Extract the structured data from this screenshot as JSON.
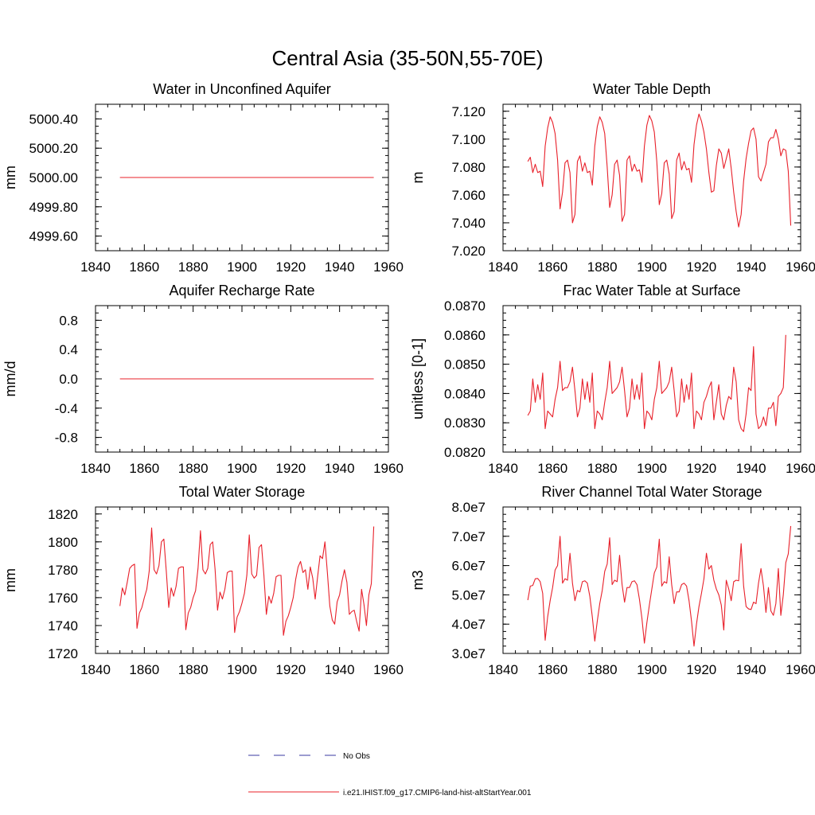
{
  "figure": {
    "title": "Central Asia (35-50N,55-70E)",
    "legend": [
      {
        "label": "No Obs",
        "color": "#3a3aa0",
        "dash": "dashed"
      },
      {
        "label": "i.e21.IHIST.f09_g17.CMIP6-land-hist-altStartYear.001",
        "color": "#e8202a",
        "dash": "solid"
      }
    ]
  },
  "chart_data": [
    {
      "type": "line",
      "title": "Water in Unconfined Aquifer",
      "xlabel": "",
      "ylabel": "mm",
      "xlim": [
        1840,
        1960
      ],
      "ylim": [
        4999.5,
        5000.5
      ],
      "xticks": [
        1840,
        1860,
        1880,
        1900,
        1920,
        1940,
        1960
      ],
      "yticks": [
        4999.6,
        4999.8,
        5000.0,
        5000.2,
        5000.4
      ],
      "ytick_labels": [
        "4999.60",
        "4999.80",
        "5000.00",
        "5000.20",
        "5000.40"
      ],
      "series": [
        {
          "color": "#e8202a",
          "x": [
            1850,
            1954
          ],
          "values": [
            5000.0,
            5000.0
          ]
        }
      ]
    },
    {
      "type": "line",
      "title": "Water Table Depth",
      "xlabel": "",
      "ylabel": "m",
      "xlim": [
        1840,
        1960
      ],
      "ylim": [
        7.02,
        7.125
      ],
      "xticks": [
        1840,
        1860,
        1880,
        1900,
        1920,
        1940,
        1960
      ],
      "yticks": [
        7.02,
        7.04,
        7.06,
        7.08,
        7.1,
        7.12
      ],
      "ytick_labels": [
        "7.020",
        "7.040",
        "7.060",
        "7.080",
        "7.100",
        "7.120"
      ],
      "series": [
        {
          "color": "#e8202a",
          "x0": 1850,
          "dx": 1,
          "values": [
            7.084,
            7.087,
            7.076,
            7.082,
            7.076,
            7.077,
            7.066,
            7.095,
            7.108,
            7.116,
            7.112,
            7.104,
            7.085,
            7.05,
            7.062,
            7.083,
            7.085,
            7.076,
            7.04,
            7.046,
            7.084,
            7.088,
            7.077,
            7.083,
            7.076,
            7.077,
            7.067,
            7.095,
            7.109,
            7.116,
            7.112,
            7.104,
            7.08,
            7.051,
            7.06,
            7.082,
            7.085,
            7.074,
            7.041,
            7.046,
            7.085,
            7.088,
            7.077,
            7.082,
            7.077,
            7.078,
            7.069,
            7.095,
            7.11,
            7.117,
            7.113,
            7.105,
            7.084,
            7.053,
            7.061,
            7.083,
            7.085,
            7.075,
            7.043,
            7.048,
            7.085,
            7.09,
            7.078,
            7.084,
            7.078,
            7.079,
            7.069,
            7.096,
            7.11,
            7.118,
            7.113,
            7.105,
            7.093,
            7.076,
            7.062,
            7.063,
            7.081,
            7.093,
            7.09,
            7.079,
            7.086,
            7.093,
            7.079,
            7.062,
            7.048,
            7.037,
            7.046,
            7.07,
            7.086,
            7.097,
            7.106,
            7.108,
            7.1,
            7.073,
            7.07,
            7.076,
            7.082,
            7.098,
            7.101,
            7.101,
            7.107,
            7.1,
            7.088,
            7.093,
            7.092,
            7.077,
            7.038
          ]
        }
      ]
    },
    {
      "type": "line",
      "title": "Aquifer Recharge Rate",
      "xlabel": "",
      "ylabel": "mm/d",
      "xlim": [
        1840,
        1960
      ],
      "ylim": [
        -1.0,
        1.0
      ],
      "xticks": [
        1840,
        1860,
        1880,
        1900,
        1920,
        1940,
        1960
      ],
      "yticks": [
        -0.8,
        -0.4,
        0.0,
        0.4,
        0.8
      ],
      "ytick_labels": [
        "-0.8",
        "-0.4",
        "0.0",
        "0.4",
        "0.8"
      ],
      "series": [
        {
          "color": "#e8202a",
          "x": [
            1850,
            1954
          ],
          "values": [
            0.0,
            0.0
          ]
        }
      ]
    },
    {
      "type": "line",
      "title": "Frac Water Table at Surface",
      "xlabel": "",
      "ylabel": "unitless [0-1]",
      "xlim": [
        1840,
        1960
      ],
      "ylim": [
        0.082,
        0.087
      ],
      "xticks": [
        1840,
        1860,
        1880,
        1900,
        1920,
        1940,
        1960
      ],
      "yticks": [
        0.082,
        0.083,
        0.084,
        0.085,
        0.086,
        0.087
      ],
      "ytick_labels": [
        "0.0820",
        "0.0830",
        "0.0840",
        "0.0850",
        "0.0860",
        "0.0870"
      ],
      "series": [
        {
          "color": "#e8202a",
          "x0": 1850,
          "dx": 1,
          "values": [
            0.08325,
            0.0834,
            0.0845,
            0.0837,
            0.0843,
            0.0838,
            0.0847,
            0.0828,
            0.0834,
            0.0833,
            0.0832,
            0.0838,
            0.0842,
            0.0851,
            0.0841,
            0.0842,
            0.0842,
            0.0844,
            0.0849,
            0.0841,
            0.0832,
            0.0835,
            0.0845,
            0.0838,
            0.0844,
            0.0837,
            0.0847,
            0.0828,
            0.0834,
            0.0833,
            0.0831,
            0.0837,
            0.0842,
            0.0851,
            0.084,
            0.0841,
            0.0842,
            0.0844,
            0.0849,
            0.0841,
            0.0832,
            0.0835,
            0.0845,
            0.0838,
            0.0843,
            0.0838,
            0.0847,
            0.0828,
            0.0834,
            0.0833,
            0.0831,
            0.0838,
            0.0842,
            0.0851,
            0.084,
            0.0841,
            0.0842,
            0.0844,
            0.0849,
            0.0841,
            0.0832,
            0.0834,
            0.0845,
            0.0837,
            0.0843,
            0.0838,
            0.0847,
            0.0828,
            0.0834,
            0.0833,
            0.0831,
            0.0837,
            0.0839,
            0.0842,
            0.0844,
            0.0831,
            0.0837,
            0.0843,
            0.0833,
            0.0831,
            0.0836,
            0.0839,
            0.0838,
            0.0849,
            0.0844,
            0.0831,
            0.0828,
            0.0827,
            0.0833,
            0.0842,
            0.0841,
            0.0856,
            0.0833,
            0.0828,
            0.0829,
            0.0832,
            0.0829,
            0.0835,
            0.0835,
            0.0837,
            0.0829,
            0.0839,
            0.084,
            0.0842,
            0.086
          ]
        }
      ]
    },
    {
      "type": "line",
      "title": "Total Water Storage",
      "xlabel": "",
      "ylabel": "mm",
      "xlim": [
        1840,
        1960
      ],
      "ylim": [
        1720,
        1825
      ],
      "xticks": [
        1840,
        1860,
        1880,
        1900,
        1920,
        1940,
        1960
      ],
      "yticks": [
        1720,
        1740,
        1760,
        1780,
        1800,
        1820
      ],
      "ytick_labels": [
        "1720",
        "1740",
        "1760",
        "1780",
        "1800",
        "1820"
      ],
      "series": [
        {
          "color": "#e8202a",
          "x0": 1850,
          "dx": 1,
          "values": [
            1754,
            1767,
            1762,
            1771,
            1781,
            1783,
            1784,
            1738,
            1749,
            1753,
            1760,
            1766,
            1779,
            1810,
            1780,
            1777,
            1783,
            1800,
            1802,
            1779,
            1753,
            1767,
            1761,
            1768,
            1781,
            1782,
            1782,
            1737,
            1749,
            1753,
            1760,
            1765,
            1781,
            1808,
            1780,
            1777,
            1781,
            1798,
            1800,
            1780,
            1751,
            1764,
            1759,
            1766,
            1778,
            1779,
            1779,
            1735,
            1746,
            1750,
            1756,
            1763,
            1776,
            1805,
            1777,
            1774,
            1776,
            1796,
            1798,
            1776,
            1748,
            1761,
            1756,
            1763,
            1775,
            1776,
            1776,
            1733,
            1743,
            1747,
            1753,
            1760,
            1773,
            1782,
            1786,
            1778,
            1780,
            1766,
            1782,
            1774,
            1759,
            1775,
            1790,
            1788,
            1800,
            1778,
            1754,
            1744,
            1741,
            1757,
            1762,
            1772,
            1780,
            1771,
            1748,
            1750,
            1751,
            1743,
            1736,
            1766,
            1755,
            1740,
            1762,
            1770,
            1811
          ]
        }
      ]
    },
    {
      "type": "line",
      "title": "River Channel Total Water Storage",
      "xlabel": "",
      "ylabel": "m3",
      "xlim": [
        1840,
        1960
      ],
      "ylim": [
        30000000,
        80000000
      ],
      "xticks": [
        1840,
        1860,
        1880,
        1900,
        1920,
        1940,
        1960
      ],
      "yticks": [
        30000000,
        40000000,
        50000000,
        60000000,
        70000000,
        80000000
      ],
      "ytick_labels": [
        "3.0e7",
        "4.0e7",
        "5.0e7",
        "6.0e7",
        "7.0e7",
        "8.0e7"
      ],
      "series": [
        {
          "color": "#e8202a",
          "x0": 1850,
          "dx": 1,
          "values": [
            48200000,
            53000000,
            53200000,
            55500000,
            55600000,
            54500000,
            50500000,
            34500000,
            42500000,
            48000000,
            52500000,
            58500000,
            60000000,
            70000000,
            54000000,
            55500000,
            55000000,
            64200000,
            54000000,
            48000000,
            51500000,
            51000000,
            54500000,
            54800000,
            54000000,
            49500000,
            42500000,
            34200000,
            41000000,
            47000000,
            51500000,
            58000000,
            60500000,
            69500000,
            53500000,
            55000000,
            54500000,
            63500000,
            53500000,
            47500000,
            52500000,
            52500000,
            54500000,
            54800000,
            53500000,
            48500000,
            42000000,
            33500000,
            40500000,
            46500000,
            52000000,
            57500000,
            59500000,
            69000000,
            53000000,
            54500000,
            54000000,
            63000000,
            53500000,
            47000000,
            51000000,
            51000000,
            53500000,
            54000000,
            53000000,
            48000000,
            41000000,
            32500000,
            40000000,
            46000000,
            50500000,
            55500000,
            64200000,
            58800000,
            60000000,
            55000000,
            52000000,
            50000000,
            46500000,
            38000000,
            55000000,
            52000000,
            48000000,
            54500000,
            55000000,
            54800000,
            67500000,
            53000000,
            46000000,
            45200000,
            45000000,
            47500000,
            47000000,
            54000000,
            59000000,
            53000000,
            44000000,
            52500000,
            44500000,
            43000000,
            47000000,
            59000000,
            43000000,
            50000000,
            61000000,
            64000000,
            73500000
          ]
        }
      ]
    }
  ]
}
